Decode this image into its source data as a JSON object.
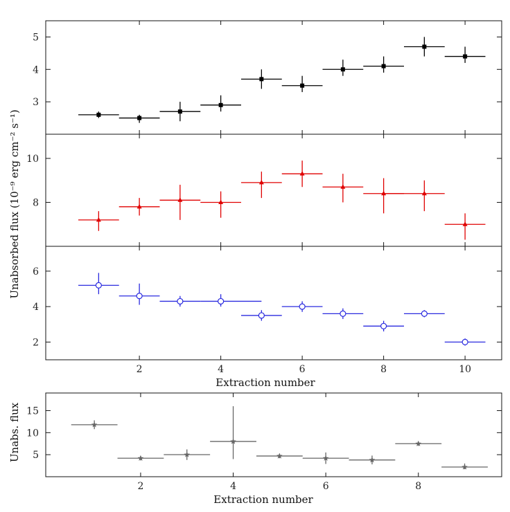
{
  "ylabel_shared": "Unabsorbed flux (10⁻⁹ erg cm⁻² s⁻¹)",
  "chart_data": [
    {
      "type": "scatter",
      "panel": "top",
      "color": "#000000",
      "marker": "square",
      "x": [
        1,
        2,
        3,
        4,
        5,
        6,
        7,
        8,
        9,
        10
      ],
      "y": [
        2.6,
        2.5,
        2.7,
        2.9,
        3.7,
        3.5,
        4.0,
        4.1,
        4.7,
        4.4
      ],
      "yerr_lo": [
        0.1,
        0.15,
        0.3,
        0.2,
        0.3,
        0.2,
        0.2,
        0.2,
        0.3,
        0.2
      ],
      "yerr_hi": [
        0.1,
        0.1,
        0.3,
        0.3,
        0.3,
        0.3,
        0.3,
        0.3,
        0.3,
        0.3
      ],
      "xerr": 0.5,
      "xlim": [
        -0.3,
        10.9
      ],
      "ylim": [
        2.0,
        5.5
      ],
      "yticks": [
        3,
        4,
        5
      ],
      "xticks": [
        2,
        4,
        6,
        8,
        10
      ],
      "xlabel": ""
    },
    {
      "type": "scatter",
      "panel": "middle",
      "color": "#e00000",
      "marker": "triangle",
      "x": [
        1,
        2,
        3,
        4,
        5,
        6,
        7,
        8,
        9,
        10
      ],
      "y": [
        7.2,
        7.8,
        8.1,
        8.0,
        8.9,
        9.3,
        8.7,
        8.4,
        8.4,
        7.0
      ],
      "yerr_lo": [
        0.5,
        0.4,
        0.9,
        0.7,
        0.7,
        0.6,
        0.7,
        0.9,
        0.8,
        0.7
      ],
      "yerr_hi": [
        0.4,
        0.4,
        0.7,
        0.5,
        0.5,
        0.6,
        0.6,
        0.7,
        0.6,
        0.5
      ],
      "xerr_lo": [
        0.5,
        0.5,
        0.5,
        0.5,
        0.5,
        0.5,
        0.5,
        0.5,
        1.0,
        0.5
      ],
      "xerr_hi": [
        0.5,
        0.5,
        0.5,
        0.5,
        0.5,
        0.5,
        0.5,
        0.5,
        0.5,
        0.5
      ],
      "xlim": [
        -0.3,
        10.9
      ],
      "ylim": [
        6.0,
        11.1
      ],
      "yticks": [
        8,
        10
      ],
      "xticks": [
        2,
        4,
        6,
        8,
        10
      ],
      "xlabel": ""
    },
    {
      "type": "scatter",
      "panel": "lower",
      "color": "#2a2adf",
      "marker": "circle-open",
      "x": [
        1,
        2,
        3,
        4,
        5,
        6,
        7,
        8,
        9,
        10
      ],
      "y": [
        5.2,
        4.6,
        4.3,
        4.3,
        3.5,
        4.0,
        3.6,
        2.9,
        3.6,
        2.0
      ],
      "yerr_lo": [
        0.5,
        0.5,
        0.3,
        0.3,
        0.3,
        0.3,
        0.3,
        0.3,
        0.2,
        0.2
      ],
      "yerr_hi": [
        0.7,
        0.7,
        0.3,
        0.4,
        0.3,
        0.3,
        0.3,
        0.3,
        0.2,
        0.2
      ],
      "xerr_lo": [
        0.5,
        0.5,
        0.5,
        0.5,
        0.5,
        0.5,
        0.5,
        0.5,
        0.5,
        0.5
      ],
      "xerr_hi": [
        0.5,
        0.5,
        0.5,
        1.0,
        0.5,
        0.5,
        0.5,
        0.5,
        0.5,
        0.5
      ],
      "xlim": [
        -0.3,
        10.9
      ],
      "ylim": [
        1.0,
        7.4
      ],
      "yticks": [
        2,
        4,
        6
      ],
      "xticks": [
        2,
        4,
        6,
        8,
        10
      ],
      "xlabel": "Extraction number"
    },
    {
      "type": "scatter",
      "panel": "bottom",
      "color": "#666666",
      "marker": "star",
      "x": [
        1,
        2,
        3,
        4,
        5,
        6,
        7,
        8,
        9
      ],
      "y": [
        11.8,
        4.2,
        5.0,
        8.0,
        4.7,
        4.2,
        3.8,
        7.5,
        2.2
      ],
      "yerr_lo": [
        1.0,
        0.5,
        1.2,
        4.0,
        0.5,
        1.3,
        1.0,
        0.5,
        0.5
      ],
      "yerr_hi": [
        1.0,
        0.5,
        1.2,
        8.0,
        0.5,
        1.3,
        1.0,
        0.5,
        0.8
      ],
      "xerr": 0.5,
      "xlim": [
        -0.05,
        9.8
      ],
      "ylim": [
        0.0,
        19.0
      ],
      "yticks": [
        5,
        10,
        15
      ],
      "xticks": [
        2,
        4,
        6,
        8
      ],
      "xlabel": "Extraction number",
      "ylabel": "Unabs. flux"
    }
  ]
}
